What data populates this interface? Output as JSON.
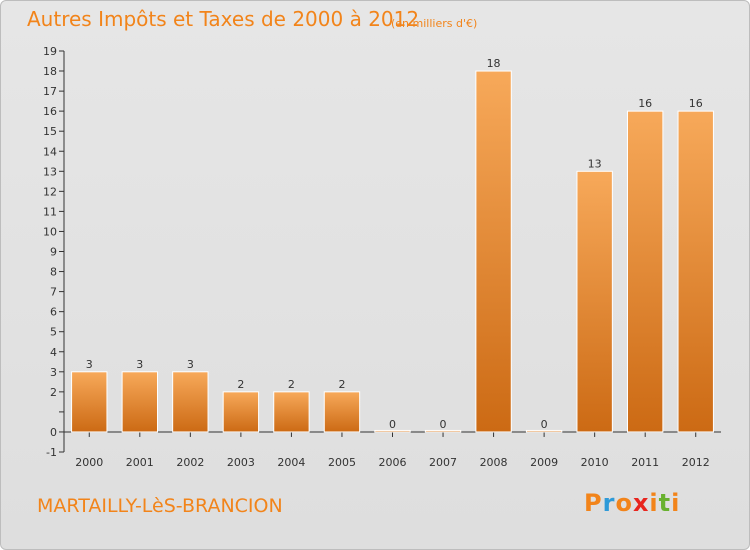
{
  "header": {
    "title": "Autres Impôts et Taxes de 2000 à 2012",
    "unit": "(en milliers d'€)"
  },
  "footer": {
    "commune": "MARTAILLY-LèS-BRANCION",
    "brand": "Proxiti",
    "brand_letters": [
      "P",
      "r",
      "o",
      "x",
      "i",
      "t",
      "i"
    ],
    "brand_colors": [
      "#f2841a",
      "#2e9ad8",
      "#f2841a",
      "#e8251e",
      "#f2841a",
      "#68b12f",
      "#f2841a"
    ]
  },
  "colors": {
    "bar_light": "#f7a95a",
    "bar_dark": "#cc6a14",
    "text": "#333333",
    "accent": "#f2841a"
  },
  "chart_data": {
    "type": "bar",
    "title": "Autres Impôts et Taxes de 2000 à 2012",
    "subtitle": "(en milliers d'€)",
    "categories": [
      "2000",
      "2001",
      "2002",
      "2003",
      "2004",
      "2005",
      "2006",
      "2007",
      "2008",
      "2009",
      "2010",
      "2011",
      "2012"
    ],
    "values": [
      3,
      3,
      3,
      2,
      2,
      2,
      0,
      0,
      18,
      0,
      13,
      16,
      16
    ],
    "data_labels": [
      "3",
      "3",
      "3",
      "2",
      "2",
      "2",
      "0",
      "0",
      "18",
      "0",
      "13",
      "16",
      "16"
    ],
    "y_ticks": [
      -1,
      0,
      1,
      2,
      3,
      4,
      5,
      6,
      7,
      8,
      9,
      10,
      11,
      12,
      13,
      14,
      15,
      16,
      17,
      18,
      19
    ],
    "y_tick_labels": [
      "-1",
      "0",
      "",
      "2",
      "3",
      "4",
      "5",
      "6",
      "7",
      "8",
      "9",
      "10",
      "11",
      "12",
      "13",
      "14",
      "15",
      "16",
      "17",
      "18",
      "19"
    ],
    "ylim": [
      -1,
      19
    ],
    "xlabel": "",
    "ylabel": "",
    "grid": false,
    "legend": "none"
  }
}
